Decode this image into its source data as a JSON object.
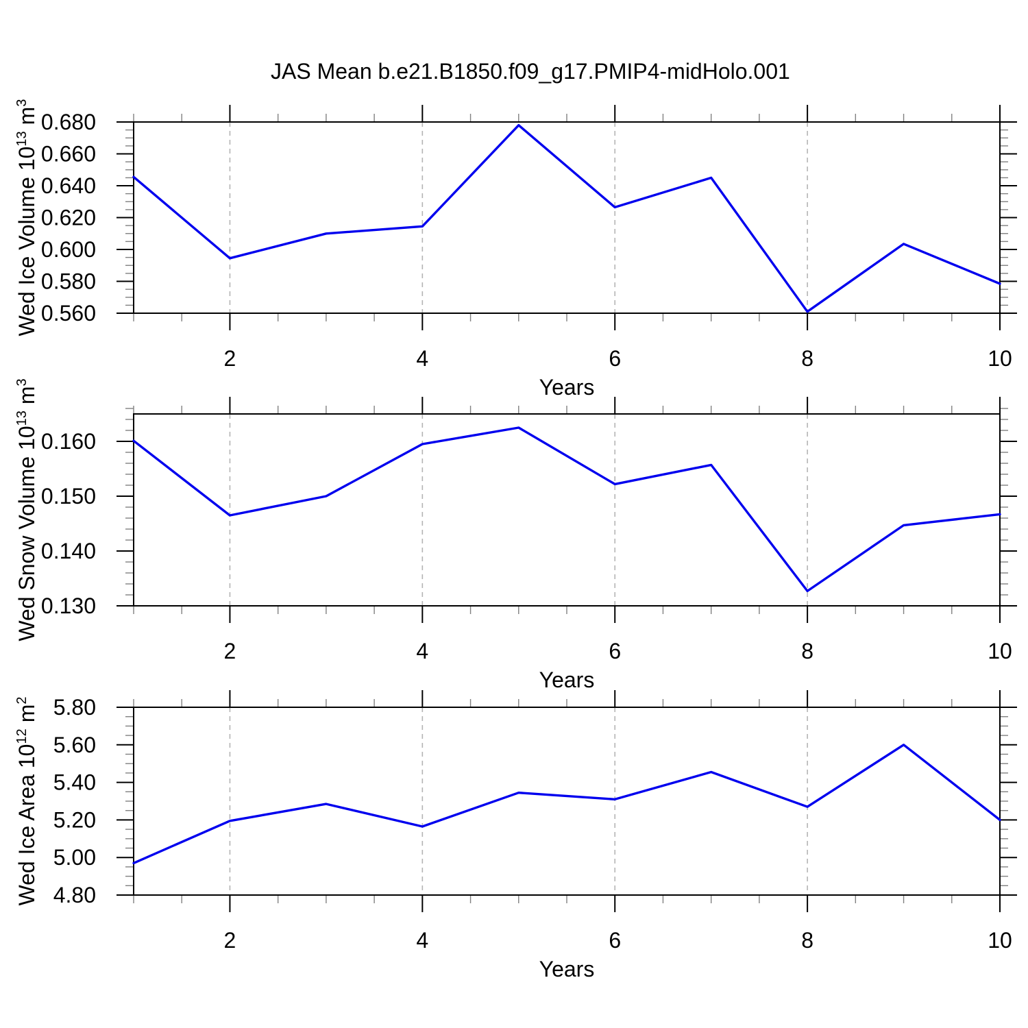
{
  "title": "JAS Mean b.e21.B1850.f09_g17.PMIP4-midHolo.001",
  "x_axis": {
    "label": "Years",
    "tick_labels": [
      "2",
      "4",
      "6",
      "8",
      "10"
    ],
    "tick_values": [
      2,
      4,
      6,
      8,
      10
    ]
  },
  "colors": {
    "line": "#0000ee",
    "grid": "#b4b4b4",
    "axis": "#000000",
    "minor_tick": "#808080"
  },
  "chart_data": [
    {
      "type": "line",
      "name": "wed-ice-volume",
      "ylabel": {
        "base": "Wed Ice Volume 10",
        "exp": "13",
        "unit": "m",
        "unit_exp": "3"
      },
      "x": [
        1,
        2,
        3,
        4,
        5,
        6,
        7,
        8,
        9,
        10
      ],
      "values": [
        0.6455,
        0.5945,
        0.61,
        0.6145,
        0.678,
        0.6265,
        0.645,
        0.561,
        0.6035,
        0.5785
      ],
      "xlim": [
        1,
        10
      ],
      "ylim": [
        0.56,
        0.68
      ],
      "ytick_values": [
        0.56,
        0.58,
        0.6,
        0.62,
        0.64,
        0.66,
        0.68
      ],
      "ytick_labels": [
        "0.560",
        "0.580",
        "0.600",
        "0.620",
        "0.640",
        "0.660",
        "0.680"
      ],
      "yminor_step": 0.005,
      "xminor_step": 0.5,
      "grid_x": [
        2,
        4,
        6,
        8
      ],
      "grid_on": "x-dashed"
    },
    {
      "type": "line",
      "name": "wed-snow-volume",
      "ylabel": {
        "base": "Wed Snow Volume 10",
        "exp": "13",
        "unit": "m",
        "unit_exp": "3"
      },
      "x": [
        1,
        2,
        3,
        4,
        5,
        6,
        7,
        8,
        9,
        10
      ],
      "values": [
        0.1601,
        0.1465,
        0.15,
        0.1595,
        0.1625,
        0.1522,
        0.1557,
        0.1327,
        0.1447,
        0.1467
      ],
      "xlim": [
        1,
        10
      ],
      "ylim": [
        0.13,
        0.165
      ],
      "ytick_values": [
        0.13,
        0.14,
        0.15,
        0.16
      ],
      "ytick_labels": [
        "0.130",
        "0.140",
        "0.150",
        "0.160"
      ],
      "yminor_step": 0.002,
      "xminor_step": 0.5,
      "grid_x": [
        2,
        4,
        6,
        8
      ],
      "grid_on": "x-dashed"
    },
    {
      "type": "line",
      "name": "wed-ice-area",
      "ylabel": {
        "base": "Wed Ice Area 10",
        "exp": "12",
        "unit": "m",
        "unit_exp": "2"
      },
      "x": [
        1,
        2,
        3,
        4,
        5,
        6,
        7,
        8,
        9,
        10
      ],
      "values": [
        4.97,
        5.195,
        5.285,
        5.165,
        5.345,
        5.31,
        5.455,
        5.27,
        5.6,
        5.2
      ],
      "xlim": [
        1,
        10
      ],
      "ylim": [
        4.8,
        5.8
      ],
      "ytick_values": [
        4.8,
        5.0,
        5.2,
        5.4,
        5.6,
        5.8
      ],
      "ytick_labels": [
        "4.80",
        "5.00",
        "5.20",
        "5.40",
        "5.60",
        "5.80"
      ],
      "yminor_step": 0.05,
      "xminor_step": 0.5,
      "grid_x": [
        2,
        4,
        6,
        8
      ],
      "grid_on": "x-dashed"
    }
  ]
}
